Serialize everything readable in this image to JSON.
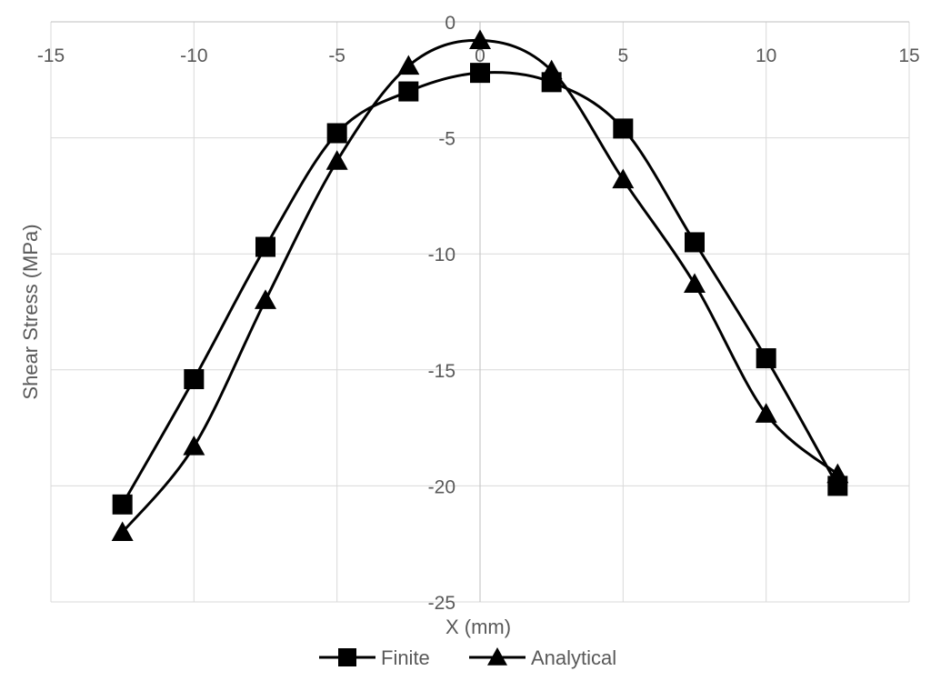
{
  "chart_data": {
    "type": "scatter",
    "title": "",
    "xlabel": "X (mm)",
    "ylabel": "Shear Stress (MPa)",
    "xlim": [
      -15,
      15
    ],
    "ylim": [
      -25,
      0
    ],
    "x_ticks": [
      -15,
      -10,
      -5,
      0,
      5,
      10,
      15
    ],
    "y_ticks": [
      0,
      -5,
      -10,
      -15,
      -20,
      -25
    ],
    "grid": true,
    "legend_position": "bottom",
    "series": [
      {
        "name": "Finite",
        "marker": "square",
        "color": "#000000",
        "x": [
          -12.5,
          -10,
          -7.5,
          -5,
          -2.5,
          0,
          2.5,
          5,
          7.5,
          10,
          12.5
        ],
        "y": [
          -20.8,
          -15.4,
          -9.7,
          -4.8,
          -3.0,
          -2.2,
          -2.6,
          -4.6,
          -9.5,
          -14.5,
          -20.0
        ]
      },
      {
        "name": "Analytical",
        "marker": "triangle",
        "color": "#000000",
        "x": [
          -12.5,
          -10,
          -7.5,
          -5,
          -2.5,
          0,
          2.5,
          5,
          7.5,
          10,
          12.5
        ],
        "y": [
          -22.0,
          -18.3,
          -12.0,
          -6.0,
          -1.9,
          -0.8,
          -2.1,
          -6.8,
          -11.3,
          -16.9,
          -19.5
        ]
      }
    ]
  }
}
